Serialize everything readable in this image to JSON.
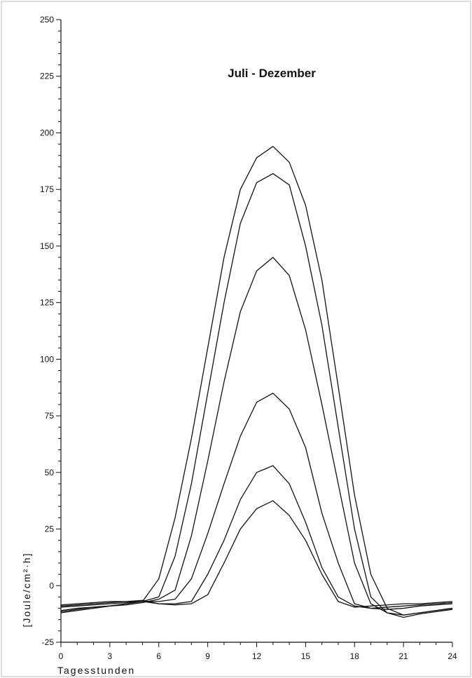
{
  "chart_data": {
    "type": "line",
    "title": "Juli - Dezember",
    "xlabel": "Tagesstunden",
    "ylabel": "[Joule/cm²·h]",
    "xlim": [
      0,
      24
    ],
    "ylim": [
      -25,
      250
    ],
    "xticks": [
      0,
      3,
      6,
      9,
      12,
      15,
      18,
      21,
      24
    ],
    "yticks": [
      -25,
      0,
      25,
      50,
      75,
      100,
      125,
      150,
      175,
      200,
      225,
      250
    ],
    "grid": false,
    "x": [
      0,
      1,
      2,
      3,
      4,
      5,
      6,
      7,
      8,
      9,
      10,
      11,
      12,
      13,
      14,
      15,
      16,
      17,
      18,
      19,
      20,
      21,
      22,
      23,
      24
    ],
    "series": [
      {
        "values": [
          -12,
          -11,
          -10,
          -9,
          -8,
          -7,
          3,
          30,
          65,
          105,
          145,
          175,
          189,
          194,
          187,
          168,
          135,
          88,
          40,
          5,
          -10,
          -13,
          -12,
          -11,
          -10
        ]
      },
      {
        "values": [
          -11.5,
          -10.5,
          -9.5,
          -9,
          -8,
          -7,
          -5,
          13,
          45,
          85,
          125,
          160,
          178,
          182,
          177,
          150,
          115,
          70,
          25,
          -5,
          -12,
          -14,
          -12.5,
          -11.5,
          -10.5
        ]
      },
      {
        "values": [
          -11,
          -10,
          -9.5,
          -9,
          -8.5,
          -7.5,
          -6,
          -2,
          22,
          55,
          90,
          121,
          139,
          145,
          137,
          113,
          80,
          45,
          10,
          -8,
          -12,
          -13,
          -12,
          -11,
          -10
        ]
      },
      {
        "values": [
          -9.5,
          -9,
          -8.5,
          -8,
          -7.5,
          -7,
          -7,
          -6,
          3,
          23,
          45,
          66,
          81,
          85,
          78,
          61,
          32,
          10,
          -8,
          -10,
          -10.5,
          -10,
          -9,
          -8.5,
          -8
        ]
      },
      {
        "values": [
          -9,
          -8.5,
          -8,
          -7.5,
          -7,
          -6.5,
          -8,
          -8,
          -7,
          5,
          20,
          38,
          50,
          53,
          45,
          28,
          8,
          -5,
          -9,
          -10,
          -9.5,
          -9,
          -8.5,
          -8,
          -7.5
        ]
      },
      {
        "values": [
          -8.5,
          -8,
          -7.5,
          -7,
          -7,
          -7,
          -8,
          -8.5,
          -8,
          -4,
          10,
          25,
          34,
          37.5,
          31,
          20,
          5,
          -7,
          -9.5,
          -9,
          -8.5,
          -8,
          -8,
          -7.5,
          -7
        ]
      }
    ]
  }
}
